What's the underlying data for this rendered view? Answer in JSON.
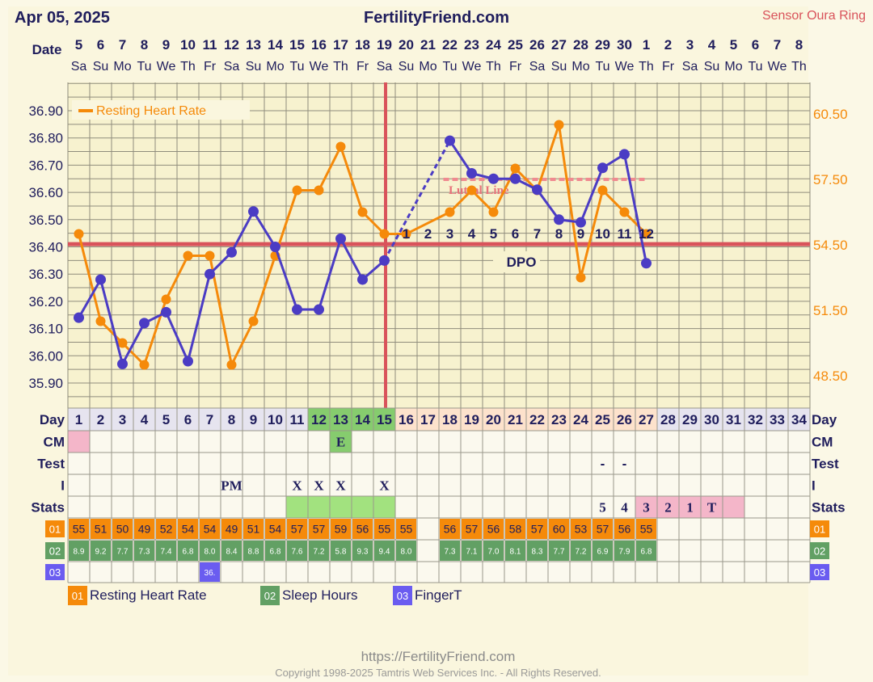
{
  "header": {
    "date": "Apr 05, 2025",
    "site": "FertilityFriend.com",
    "sensor": "Sensor Oura Ring"
  },
  "labels": {
    "date_row": "Date",
    "day": "Day",
    "cm": "CM",
    "test": "Test",
    "i": "I",
    "stats": "Stats",
    "legend_rhr": "Resting Heart Rate",
    "luteal": "Luteal Line",
    "dpo": "DPO"
  },
  "colors": {
    "temp_line": "#4b3cc4",
    "rhr_line": "#f58a0a",
    "coverline": "#d9535b",
    "ovulation": "#d9535b",
    "fertile_green": "#86cc6e",
    "stats_green": "#a2e27f",
    "luteal_peach": "#fde2cc",
    "stats_pink": "#f4b6c9",
    "cm_pink": "#f4b6c9",
    "rhr_box": "#f58a0a",
    "sleep_box": "#62a064",
    "finger_box": "#6a5cf0",
    "day_bg": "#e6e4ef"
  },
  "dates": [
    "5",
    "6",
    "7",
    "8",
    "9",
    "10",
    "11",
    "12",
    "13",
    "14",
    "15",
    "16",
    "17",
    "18",
    "19",
    "20",
    "21",
    "22",
    "23",
    "24",
    "25",
    "26",
    "27",
    "28",
    "29",
    "30",
    "1",
    "2",
    "3",
    "4",
    "5",
    "6",
    "7",
    "8"
  ],
  "weekdays": [
    "Sa",
    "Su",
    "Mo",
    "Tu",
    "We",
    "Th",
    "Fr",
    "Sa",
    "Su",
    "Mo",
    "Tu",
    "We",
    "Th",
    "Fr",
    "Sa",
    "Su",
    "Mo",
    "Tu",
    "We",
    "Th",
    "Fr",
    "Sa",
    "Su",
    "Mo",
    "Tu",
    "We",
    "Th",
    "Fr",
    "Sa",
    "Su",
    "Mo",
    "Tu",
    "We",
    "Th"
  ],
  "cycle_days": [
    "1",
    "2",
    "3",
    "4",
    "5",
    "6",
    "7",
    "8",
    "9",
    "10",
    "11",
    "12",
    "13",
    "14",
    "15",
    "16",
    "17",
    "18",
    "19",
    "20",
    "21",
    "22",
    "23",
    "24",
    "25",
    "26",
    "27",
    "28",
    "29",
    "30",
    "31",
    "32",
    "33",
    "34"
  ],
  "cm_row": [
    "",
    "",
    "",
    "",
    "",
    "",
    "",
    "",
    "",
    "",
    "",
    "",
    "E",
    "",
    "",
    "",
    "",
    "",
    "",
    "",
    "",
    "",
    "",
    "",
    "",
    "",
    "",
    "",
    "",
    "",
    "",
    "",
    "",
    ""
  ],
  "test_row": [
    "",
    "",
    "",
    "",
    "",
    "",
    "",
    "",
    "",
    "",
    "",
    "",
    "",
    "",
    "",
    "",
    "",
    "",
    "",
    "",
    "",
    "",
    "",
    "",
    "-",
    "-",
    "",
    "",
    "",
    "",
    "",
    "",
    "",
    ""
  ],
  "i_row": [
    "",
    "",
    "",
    "",
    "",
    "",
    "",
    "PM",
    "",
    "",
    "X",
    "X",
    "X",
    "",
    "X",
    "",
    "",
    "",
    "",
    "",
    "",
    "",
    "",
    "",
    "",
    "",
    "",
    "",
    "",
    "",
    "",
    "",
    "",
    ""
  ],
  "stats_row": [
    "",
    "",
    "",
    "",
    "",
    "",
    "",
    "",
    "",
    "",
    "",
    "",
    "",
    "",
    "",
    "",
    "",
    "",
    "",
    "",
    "",
    "",
    "",
    "",
    "5",
    "4",
    "3",
    "2",
    "1",
    "T",
    "",
    "",
    "",
    ""
  ],
  "rhr_row": [
    "55",
    "51",
    "50",
    "49",
    "52",
    "54",
    "54",
    "49",
    "51",
    "54",
    "57",
    "57",
    "59",
    "56",
    "55",
    "55",
    "",
    "56",
    "57",
    "56",
    "58",
    "57",
    "60",
    "53",
    "57",
    "56",
    "55",
    "",
    "",
    "",
    "",
    "",
    "",
    ""
  ],
  "sleep_row": [
    "8.9",
    "9.2",
    "7.7",
    "7.3",
    "7.4",
    "6.8",
    "8.0",
    "8.4",
    "8.8",
    "6.8",
    "7.6",
    "7.2",
    "5.8",
    "9.3",
    "9.4",
    "8.0",
    "",
    "7.3",
    "7.1",
    "7.0",
    "8.1",
    "8.3",
    "7.7",
    "7.2",
    "6.9",
    "7.9",
    "6.8",
    "",
    "",
    "",
    "",
    "",
    "",
    ""
  ],
  "finger_row": [
    "",
    "",
    "",
    "",
    "",
    "",
    "36.",
    "",
    "",
    "",
    "",
    "",
    "",
    "",
    "",
    "",
    "",
    "",
    "",
    "",
    "",
    "",
    "",
    "",
    "",
    "",
    "",
    "",
    "",
    "",
    "",
    "",
    "",
    ""
  ],
  "dpo_numbers": [
    "1",
    "2",
    "3",
    "4",
    "5",
    "6",
    "7",
    "8",
    "9",
    "10",
    "11",
    "12"
  ],
  "box_codes": {
    "rhr": "01",
    "sleep": "02",
    "finger": "03"
  },
  "legend": [
    {
      "code": "01",
      "label": "Resting Heart Rate"
    },
    {
      "code": "02",
      "label": "Sleep Hours"
    },
    {
      "code": "03",
      "label": "FingerT"
    }
  ],
  "footer": {
    "url": "https://FertilityFriend.com",
    "copyright": "Copyright 1998-2025 Tamtris Web Services Inc. - All Rights Reserved."
  },
  "chart_data": {
    "type": "line",
    "x": [
      1,
      2,
      3,
      4,
      5,
      6,
      7,
      8,
      9,
      10,
      11,
      12,
      13,
      14,
      15,
      16,
      17,
      18,
      19,
      20,
      21,
      22,
      23,
      24,
      25,
      26,
      27,
      28,
      29,
      30,
      31,
      32,
      33,
      34
    ],
    "y_left_ticks": [
      "36.90",
      "36.80",
      "36.70",
      "36.60",
      "36.50",
      "36.40",
      "36.30",
      "36.20",
      "36.10",
      "36.00",
      "35.90"
    ],
    "y_left_range": [
      35.85,
      36.95
    ],
    "y_right_ticks": [
      "60.50",
      "57.50",
      "54.50",
      "51.50",
      "48.50"
    ],
    "y_right_range": [
      47.35,
      61.2
    ],
    "coverline": 36.41,
    "ovulation_day": 15,
    "luteal_line": {
      "start_day": 17.5,
      "end_day": 27,
      "value": 57.5
    },
    "series": [
      {
        "name": "",
        "axis": "left",
        "values": [
          36.14,
          36.28,
          35.97,
          36.12,
          36.16,
          35.98,
          36.3,
          36.38,
          36.53,
          36.4,
          36.17,
          36.17,
          36.43,
          36.28,
          36.35,
          null,
          null,
          36.79,
          36.67,
          36.65,
          36.65,
          36.61,
          36.5,
          36.49,
          36.69,
          36.74,
          36.34,
          null,
          null,
          null,
          null,
          null,
          null,
          null
        ],
        "dashed_gap": [
          15,
          18
        ]
      },
      {
        "name": "Resting Heart Rate",
        "axis": "right",
        "values": [
          55,
          51,
          50,
          49,
          52,
          54,
          54,
          49,
          51,
          54,
          57,
          57,
          59,
          56,
          55,
          55,
          null,
          56,
          57,
          56,
          58,
          57,
          60,
          53,
          57,
          56,
          55,
          null,
          null,
          null,
          null,
          null,
          null,
          null
        ]
      }
    ]
  }
}
